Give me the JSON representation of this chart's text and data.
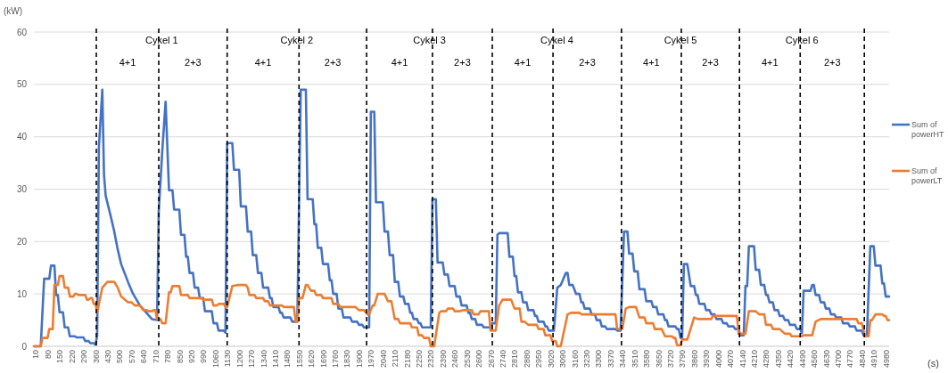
{
  "chart_data": {
    "type": "line",
    "ylabel": "(kW)",
    "xlabel": "(s)",
    "xlim": [
      0,
      5000
    ],
    "ylim": [
      0,
      60
    ],
    "yticks": [
      0,
      10,
      20,
      30,
      40,
      50,
      60
    ],
    "xticks": [
      10,
      80,
      150,
      220,
      290,
      360,
      430,
      500,
      570,
      640,
      710,
      780,
      850,
      920,
      990,
      1060,
      1130,
      1200,
      1270,
      1340,
      1410,
      1480,
      1550,
      1620,
      1690,
      1760,
      1830,
      1900,
      1970,
      2040,
      2110,
      2180,
      2250,
      2320,
      2390,
      2460,
      2530,
      2600,
      2670,
      2740,
      2810,
      2880,
      2950,
      3020,
      3090,
      3160,
      3230,
      3300,
      3370,
      3440,
      3510,
      3580,
      3650,
      3720,
      3790,
      3860,
      3930,
      4000,
      4070,
      4140,
      4210,
      4280,
      4350,
      4420,
      4490,
      4560,
      4630,
      4700,
      4770,
      4840,
      4910,
      4980
    ],
    "grid": "y",
    "legend": "right",
    "series": [
      {
        "name": "Sum of powerHT",
        "color": "#4472c4",
        "x": [
          0,
          40,
          60,
          90,
          100,
          120,
          130,
          140,
          150,
          170,
          180,
          200,
          210,
          240,
          250,
          290,
          300,
          320,
          330,
          350,
          360,
          370,
          380,
          400,
          410,
          420,
          450,
          470,
          490,
          510,
          550,
          580,
          620,
          650,
          690,
          720,
          730,
          750,
          770,
          790,
          810,
          820,
          850,
          860,
          880,
          890,
          900,
          910,
          930,
          940,
          960,
          970,
          990,
          1000,
          1040,
          1050,
          1070,
          1080,
          1110,
          1120,
          1130,
          1160,
          1170,
          1200,
          1210,
          1240,
          1250,
          1270,
          1280,
          1300,
          1310,
          1330,
          1340,
          1370,
          1380,
          1390,
          1400,
          1430,
          1440,
          1450,
          1460,
          1500,
          1510,
          1540,
          1560,
          1590,
          1600,
          1630,
          1640,
          1650,
          1660,
          1680,
          1690,
          1720,
          1730,
          1740,
          1750,
          1770,
          1780,
          1800,
          1810,
          1850,
          1860,
          1890,
          1900,
          1920,
          1930,
          1960,
          1970,
          1990,
          2000,
          2040,
          2050,
          2070,
          2080,
          2100,
          2110,
          2130,
          2140,
          2160,
          2170,
          2190,
          2200,
          2210,
          2220,
          2240,
          2250,
          2260,
          2270,
          2320,
          2330,
          2350,
          2360,
          2390,
          2400,
          2420,
          2430,
          2460,
          2470,
          2490,
          2500,
          2530,
          2540,
          2550,
          2560,
          2580,
          2590,
          2620,
          2630,
          2670,
          2680,
          2700,
          2710,
          2720,
          2770,
          2780,
          2800,
          2810,
          2820,
          2830,
          2850,
          2860,
          2880,
          2890,
          2920,
          2930,
          2940,
          2950,
          2980,
          2990,
          3000,
          3010,
          3040,
          3060,
          3080,
          3110,
          3120,
          3130,
          3150,
          3170,
          3190,
          3200,
          3210,
          3220,
          3250,
          3260,
          3280,
          3290,
          3310,
          3320,
          3340,
          3350,
          3400,
          3410,
          3430,
          3450,
          3470,
          3480,
          3500,
          3510,
          3530,
          3540,
          3570,
          3580,
          3610,
          3620,
          3640,
          3650,
          3680,
          3690,
          3700,
          3710,
          3750,
          3760,
          3770,
          3780,
          3790,
          3800,
          3820,
          3840,
          3860,
          3870,
          3880,
          3890,
          3920,
          3930,
          3950,
          3960,
          3980,
          3990,
          4020,
          4030,
          4050,
          4060,
          4090,
          4100,
          4120,
          4130,
          4150,
          4160,
          4170,
          4180,
          4210,
          4220,
          4240,
          4250,
          4270,
          4280,
          4290,
          4300,
          4320,
          4330,
          4350,
          4360,
          4380,
          4390,
          4410,
          4420,
          4450,
          4460,
          4480,
          4490,
          4500,
          4540,
          4550,
          4560,
          4570,
          4590,
          4600,
          4620,
          4630,
          4650,
          4660,
          4680,
          4690,
          4720,
          4730,
          4760,
          4770,
          4800,
          4810,
          4840,
          4850,
          4870,
          4890,
          4910,
          4920,
          4950,
          4960,
          4970,
          4980,
          5000
        ],
        "values": [
          0,
          0,
          12.9,
          12.9,
          15.4,
          15.4,
          9.8,
          9.8,
          6.5,
          6.5,
          3.6,
          3.6,
          1.9,
          1.9,
          1.7,
          1.7,
          1.0,
          1.0,
          0.6,
          0.6,
          0.3,
          2,
          38,
          49,
          32.6,
          28.7,
          24.7,
          21.9,
          18.5,
          15.7,
          12.3,
          10,
          7.8,
          6.7,
          5.2,
          5.0,
          25.8,
          37,
          46.7,
          29.8,
          29.8,
          26.1,
          26.1,
          21.3,
          21.3,
          17.1,
          17.1,
          14.0,
          14.0,
          11.2,
          11.2,
          9.2,
          9.2,
          6.7,
          6.7,
          4.4,
          4.4,
          3.0,
          3.0,
          2.6,
          38.8,
          38.8,
          33.7,
          33.7,
          26.7,
          26.7,
          21.9,
          21.9,
          17.4,
          17.4,
          14.0,
          14.0,
          11.2,
          11.2,
          9.2,
          9.2,
          7.5,
          7.5,
          6.4,
          6.4,
          5.5,
          5.5,
          4.7,
          4.7,
          49.0,
          49.0,
          28.1,
          28.1,
          23.3,
          23.3,
          18.8,
          18.8,
          15.7,
          15.7,
          12.6,
          12.6,
          10.0,
          10.0,
          7.2,
          7.2,
          5.5,
          5.5,
          4.7,
          4.7,
          4.1,
          4.1,
          3.6,
          3.6,
          44.8,
          44.8,
          27.5,
          27.5,
          21.9,
          21.9,
          17.4,
          17.4,
          12.3,
          12.3,
          9.5,
          9.5,
          8.1,
          8.1,
          6.4,
          6.4,
          5.2,
          5.2,
          4.4,
          4.4,
          3.6,
          3.6,
          28.1,
          28.1,
          16.0,
          16.0,
          13.7,
          13.7,
          11.5,
          11.5,
          9.5,
          9.5,
          7.8,
          7.8,
          6.4,
          6.4,
          5.2,
          5.2,
          4.1,
          4.1,
          3.6,
          3.6,
          4.4,
          4.4,
          21.3,
          21.6,
          21.6,
          17.1,
          17.1,
          13.4,
          13.4,
          10.3,
          10.3,
          8.4,
          8.4,
          6.9,
          6.9,
          5.8,
          5.8,
          4.7,
          4.7,
          3.8,
          3.8,
          3.0,
          3.0,
          11.2,
          11.7,
          14.0,
          14.0,
          11.7,
          11.7,
          10.0,
          10.0,
          8.4,
          8.4,
          7.2,
          7.2,
          6.1,
          6.1,
          5.0,
          5.0,
          3.8,
          3.8,
          3.3,
          3.3,
          3.0,
          3.0,
          21.9,
          21.9,
          17.7,
          17.7,
          14.3,
          14.3,
          10.9,
          10.9,
          8.6,
          8.6,
          7.5,
          7.5,
          6.1,
          6.1,
          5.0,
          5.0,
          3.8,
          3.8,
          3.3,
          3.3,
          1.6,
          1.6,
          15.7,
          15.7,
          11.5,
          11.5,
          9.8,
          9.8,
          8.1,
          8.1,
          6.9,
          6.9,
          6.1,
          6.1,
          5.2,
          5.2,
          4.4,
          4.4,
          3.8,
          3.8,
          3.3,
          3.3,
          2.1,
          2.1,
          11.5,
          11.5,
          19.1,
          19.1,
          14.6,
          14.6,
          11.7,
          11.7,
          9.8,
          9.8,
          8.4,
          8.4,
          6.9,
          6.9,
          5.8,
          5.8,
          5.0,
          5.0,
          4.1,
          4.1,
          3.3,
          3.3,
          2.5,
          10.6,
          10.6,
          11.7,
          11.7,
          9.8,
          9.8,
          8.4,
          8.4,
          7.2,
          7.2,
          6.1,
          6.1,
          5.5,
          5.5,
          4.4,
          4.4,
          3.8,
          3.8,
          3.0,
          3.0,
          2.1,
          2.1,
          19.1,
          19.1,
          15.4,
          15.4,
          12.0,
          12.0,
          9.5,
          9.5
        ]
      },
      {
        "name": "Sum of powerLT",
        "color": "#ed7d31",
        "x": [
          0,
          40,
          50,
          80,
          90,
          110,
          120,
          140,
          150,
          170,
          180,
          200,
          210,
          230,
          240,
          250,
          260,
          300,
          310,
          320,
          330,
          340,
          350,
          360,
          370,
          400,
          430,
          470,
          490,
          510,
          550,
          570,
          590,
          620,
          640,
          660,
          670,
          690,
          700,
          710,
          720,
          740,
          750,
          770,
          790,
          800,
          810,
          850,
          860,
          900,
          910,
          980,
          990,
          1040,
          1050,
          1070,
          1080,
          1110,
          1120,
          1130,
          1160,
          1190,
          1240,
          1250,
          1260,
          1290,
          1300,
          1340,
          1350,
          1370,
          1380,
          1450,
          1460,
          1520,
          1530,
          1540,
          1550,
          1570,
          1590,
          1600,
          1620,
          1640,
          1650,
          1680,
          1690,
          1740,
          1750,
          1780,
          1790,
          1880,
          1900,
          1930,
          1950,
          1960,
          1980,
          1990,
          2010,
          2050,
          2070,
          2090,
          2110,
          2130,
          2140,
          2200,
          2210,
          2240,
          2250,
          2270,
          2280,
          2310,
          2320,
          2340,
          2370,
          2380,
          2410,
          2420,
          2450,
          2460,
          2490,
          2510,
          2560,
          2570,
          2600,
          2610,
          2660,
          2670,
          2700,
          2720,
          2740,
          2790,
          2810,
          2840,
          2850,
          2870,
          2890,
          2940,
          2950,
          2980,
          2990,
          3020,
          3030,
          3050,
          3060,
          3080,
          3120,
          3140,
          3190,
          3200,
          3400,
          3410,
          3440,
          3460,
          3480,
          3520,
          3540,
          3570,
          3580,
          3620,
          3630,
          3670,
          3690,
          3730,
          3740,
          3750,
          3760,
          3780,
          3790,
          3820,
          3860,
          3880,
          3960,
          3970,
          4110,
          4120,
          4160,
          4180,
          4220,
          4240,
          4270,
          4280,
          4310,
          4320,
          4360,
          4390,
          4420,
          4430,
          4490,
          4500,
          4550,
          4570,
          4600,
          4810,
          4820,
          4840,
          4860,
          4880,
          4890,
          4900,
          4920,
          4960,
          4970,
          4980,
          4990,
          5000
        ],
        "values": [
          0,
          0,
          1.6,
          1.6,
          3.3,
          3.3,
          11.7,
          11.7,
          13.4,
          13.4,
          11.2,
          11.2,
          9.5,
          9.5,
          10.0,
          10.0,
          9.8,
          9.8,
          8.9,
          8.9,
          9.2,
          9.2,
          8.1,
          8.1,
          6.4,
          11.2,
          12.3,
          12.3,
          11.2,
          9.5,
          8.4,
          8.4,
          7.8,
          7.8,
          6.9,
          6.9,
          6.7,
          6.7,
          6.9,
          6.9,
          5.2,
          5.2,
          4.4,
          4.4,
          10.3,
          10.3,
          11.5,
          11.5,
          9.8,
          9.8,
          9.2,
          9.2,
          8.9,
          8.9,
          7.8,
          7.8,
          8.1,
          8.1,
          7.5,
          7.5,
          11.5,
          11.7,
          11.7,
          11.2,
          9.8,
          9.8,
          9.2,
          9.2,
          8.6,
          8.6,
          7.8,
          7.8,
          7.5,
          7.5,
          4.7,
          4.7,
          9.2,
          9.2,
          11.7,
          11.7,
          10.6,
          10.6,
          9.8,
          9.8,
          9.2,
          9.2,
          8.1,
          8.1,
          7.5,
          7.5,
          6.9,
          6.9,
          6.1,
          6.1,
          7.8,
          7.8,
          10.0,
          10.0,
          8.6,
          8.6,
          5.2,
          5.2,
          4.4,
          4.4,
          3.6,
          3.6,
          2.1,
          2.1,
          1.6,
          1.6,
          0,
          0,
          6.4,
          6.7,
          6.7,
          7.2,
          7.2,
          6.7,
          6.7,
          6.9,
          6.9,
          6.1,
          6.1,
          6.7,
          6.7,
          3.0,
          3.0,
          7.8,
          8.9,
          8.9,
          7.2,
          7.2,
          4.7,
          4.7,
          4.1,
          4.1,
          3.3,
          3.3,
          2.1,
          2.1,
          1.0,
          1.0,
          0,
          0,
          6.1,
          6.4,
          6.4,
          6.1,
          6.1,
          3.3,
          3.3,
          7.2,
          7.5,
          7.5,
          5.5,
          5.5,
          4.4,
          4.4,
          3.3,
          3.3,
          1.9,
          1.9,
          1.6,
          1.6,
          0.2,
          0.2,
          1.3,
          1.3,
          5.5,
          5.2,
          5.2,
          5.8,
          5.8,
          2.4,
          2.4,
          6.7,
          6.7,
          6.1,
          6.1,
          4.1,
          4.1,
          3.3,
          3.3,
          2.4,
          2.4,
          1.9,
          1.9,
          2.1,
          2.1,
          4.7,
          5.2,
          5.2,
          4.4,
          4.4,
          1.9,
          1.9,
          5.0,
          5.0,
          6.1,
          6.1,
          5.8,
          5.8,
          5.0,
          5.0
        ]
      }
    ],
    "ref_lines": [
      {
        "axis": "x",
        "value": 365,
        "line_style": "dashed",
        "color": "#000000"
      },
      {
        "axis": "x",
        "value": 730,
        "line_style": "dashed",
        "color": "#000000"
      },
      {
        "axis": "x",
        "value": 1130,
        "line_style": "dashed",
        "color": "#000000"
      },
      {
        "axis": "x",
        "value": 1550,
        "line_style": "dashed",
        "color": "#000000"
      },
      {
        "axis": "x",
        "value": 1945,
        "line_style": "dashed",
        "color": "#000000"
      },
      {
        "axis": "x",
        "value": 2330,
        "line_style": "dashed",
        "color": "#000000"
      },
      {
        "axis": "x",
        "value": 2680,
        "line_style": "dashed",
        "color": "#000000"
      },
      {
        "axis": "x",
        "value": 3035,
        "line_style": "dashed",
        "color": "#000000"
      },
      {
        "axis": "x",
        "value": 3435,
        "line_style": "dashed",
        "color": "#000000"
      },
      {
        "axis": "x",
        "value": 3785,
        "line_style": "dashed",
        "color": "#000000"
      },
      {
        "axis": "x",
        "value": 4125,
        "line_style": "dashed",
        "color": "#000000"
      },
      {
        "axis": "x",
        "value": 4480,
        "line_style": "dashed",
        "color": "#000000"
      },
      {
        "axis": "x",
        "value": 4855,
        "line_style": "dashed",
        "color": "#000000"
      }
    ],
    "annotations": [
      "Cykel 1",
      "Cykel 2",
      "Cykel 3",
      "Cykel 4",
      "Cykel 5",
      "Cykel 6",
      "4+1",
      "2+3",
      "4+1",
      "2+3",
      "4+1",
      "2+3",
      "4+1",
      "2+3",
      "4+1",
      "2+3",
      "4+1",
      "2+3"
    ]
  }
}
